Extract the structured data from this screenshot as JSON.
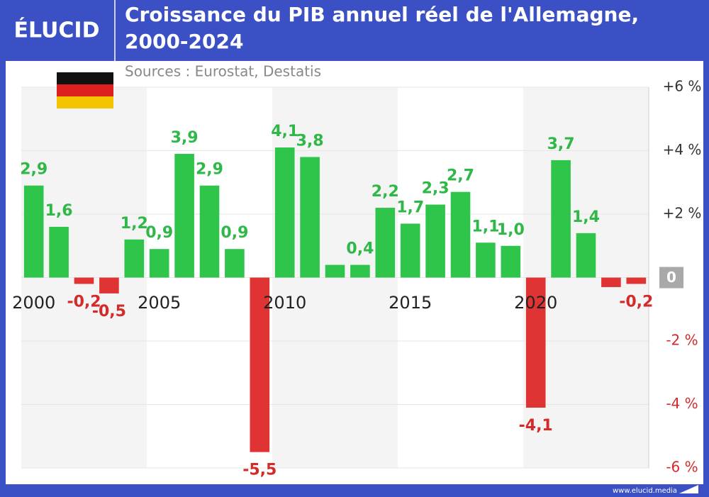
{
  "logo": "ÉLUCID",
  "footer": "www.elucid.media",
  "chart_data": {
    "type": "bar",
    "title": "Croissance du PIB annuel réel de l'Allemagne, 2000-2024",
    "subtitle": "Sources : Eurostat, Destatis",
    "categories": [
      "2000",
      null,
      null,
      null,
      null,
      "2005",
      null,
      null,
      null,
      null,
      "2010",
      null,
      null,
      null,
      null,
      "2015",
      null,
      null,
      null,
      null,
      "2020",
      null,
      null,
      null,
      null
    ],
    "values": [
      2.9,
      1.6,
      -0.2,
      -0.5,
      1.2,
      0.9,
      3.9,
      2.9,
      0.9,
      -5.5,
      4.1,
      3.8,
      0.4,
      0.4,
      2.2,
      1.7,
      2.3,
      2.7,
      1.1,
      1.0,
      -4.1,
      3.7,
      1.4,
      -0.3,
      -0.2
    ],
    "value_labels": [
      "2,9",
      "1,6",
      "-0,2",
      "-0,5",
      "1,2",
      "0,9",
      "3,9",
      "2,9",
      "0,9",
      "-5,5",
      "4,1",
      "3,8",
      null,
      "0,4",
      "2,2",
      "1,7",
      "2,3",
      "2,7",
      "1,1",
      "1,0",
      "-4,1",
      "3,7",
      "1,4",
      null,
      "-0,2"
    ],
    "color": "#2fc54b",
    "negative_color": "#e03434",
    "ylim": [
      -6,
      6
    ],
    "yticks": [
      {
        "value": 6,
        "label": "+6 %"
      },
      {
        "value": 4,
        "label": "+4 %"
      },
      {
        "value": 2,
        "label": "+2 %"
      },
      0,
      {
        "value": -2,
        "label": "-2 %"
      },
      {
        "value": -4,
        "label": "-4 %"
      },
      {
        "value": -6,
        "label": "-6 %"
      }
    ],
    "grid": true
  }
}
